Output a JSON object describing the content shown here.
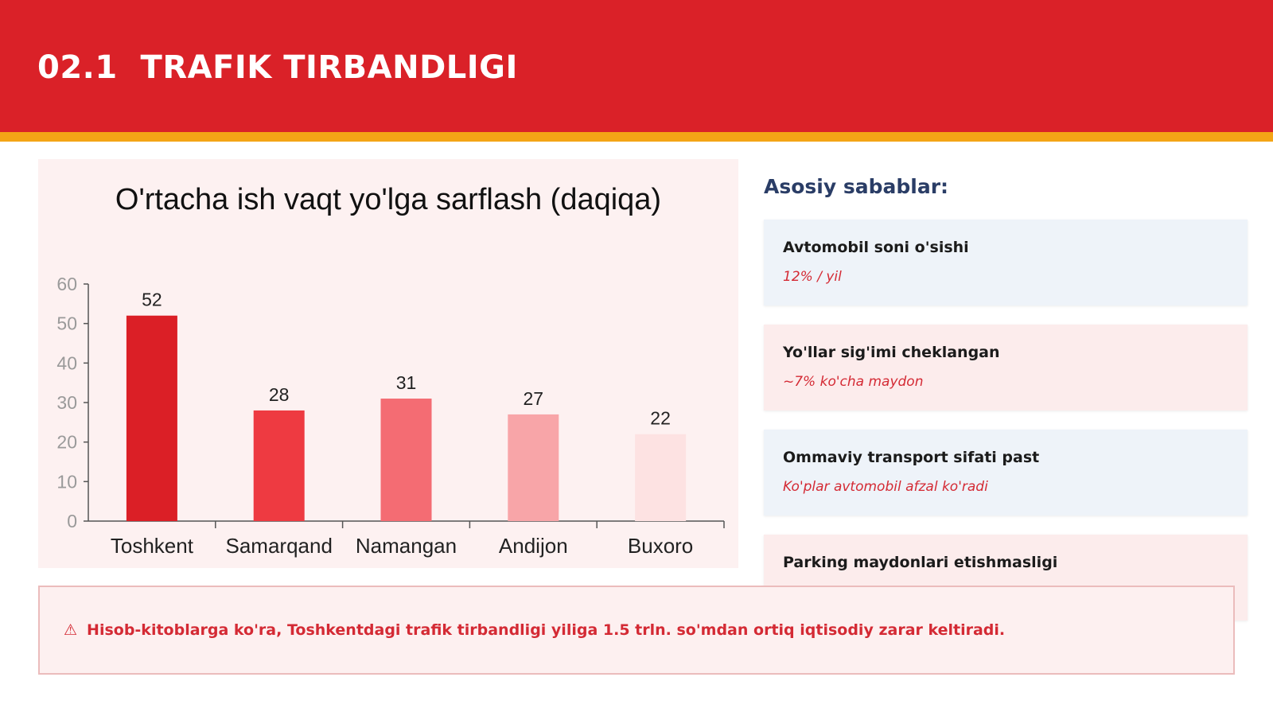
{
  "header": {
    "title": "02.1  TRAFIK TIRBANDLIGI",
    "colors": {
      "band": "#da2128",
      "stripe": "#f4a416"
    }
  },
  "chart_data": {
    "type": "bar",
    "title": "O'rtacha ish vaqt yo'lga sarflash (daqiqa)",
    "xlabel": "",
    "ylabel": "",
    "categories": [
      "Toshkent",
      "Samarqand",
      "Namangan",
      "Andijon",
      "Buxoro"
    ],
    "values": [
      52,
      28,
      31,
      27,
      22
    ],
    "data_labels": [
      "52",
      "28",
      "31",
      "27",
      "22"
    ],
    "bar_colors": [
      "#db1f26",
      "#ee3a41",
      "#f46c73",
      "#f8a5a8",
      "#fde2e2"
    ],
    "ylim": [
      0,
      60
    ],
    "yticks": [
      0,
      10,
      20,
      30,
      40,
      50,
      60
    ],
    "ytick_labels": [
      "0",
      "10",
      "20",
      "30",
      "40",
      "50",
      "60"
    ],
    "grid": false,
    "legend": "none"
  },
  "causes": {
    "title": "Asosiy sabablar:",
    "items": [
      {
        "title": "Avtomobil soni o'sishi",
        "note": "12% / yil"
      },
      {
        "title": "Yo'llar sig'imi cheklangan",
        "note": "~7% ko'cha maydon"
      },
      {
        "title": "Ommaviy transport sifati past",
        "note": "Ko'plar avtomobil afzal ko'radi"
      },
      {
        "title": "Parking maydonlari etishmasligi"
      }
    ]
  },
  "alert": {
    "icon": "warning-icon",
    "symbol": "⚠",
    "text": "Hisob-kitoblarga ko'ra, Toshkentdagi trafik tirbandligi yiliga 1.5 trln. so'mdan ortiq iqtisodiy zarar keltiradi."
  }
}
